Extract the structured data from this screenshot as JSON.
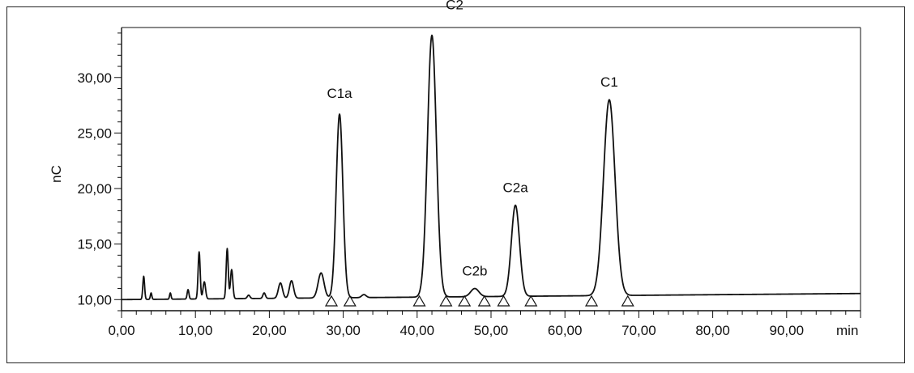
{
  "chart_data": {
    "type": "line",
    "title": "",
    "xlabel": "min",
    "ylabel": "nC",
    "xlim": [
      0,
      100
    ],
    "ylim": [
      9,
      34.5
    ],
    "grid": false,
    "legend": "none",
    "x_ticks": [
      {
        "value": 0,
        "label": "0,00"
      },
      {
        "value": 10,
        "label": "10,00"
      },
      {
        "value": 20,
        "label": "20,00"
      },
      {
        "value": 30,
        "label": "30,00"
      },
      {
        "value": 40,
        "label": "40,00"
      },
      {
        "value": 50,
        "label": "50,00"
      },
      {
        "value": 60,
        "label": "60,00"
      },
      {
        "value": 70,
        "label": "70,00"
      },
      {
        "value": 80,
        "label": "80,00"
      },
      {
        "value": 90,
        "label": "90,00"
      }
    ],
    "y_ticks": [
      {
        "value": 10,
        "label": "10,00"
      },
      {
        "value": 15,
        "label": "15,00"
      },
      {
        "value": 20,
        "label": "20,00"
      },
      {
        "value": 25,
        "label": "25,00"
      },
      {
        "value": 30,
        "label": "30,00"
      }
    ],
    "baseline": {
      "start": 10.0,
      "end": 10.55
    },
    "peaks": [
      {
        "x": 3.0,
        "y": 12.1
      },
      {
        "x": 4.0,
        "y": 10.6
      },
      {
        "x": 6.6,
        "y": 10.6
      },
      {
        "x": 9.0,
        "y": 10.9
      },
      {
        "x": 10.5,
        "y": 14.3
      },
      {
        "x": 11.2,
        "y": 11.6
      },
      {
        "x": 14.3,
        "y": 14.6
      },
      {
        "x": 14.9,
        "y": 12.7
      },
      {
        "x": 17.2,
        "y": 10.4
      },
      {
        "x": 19.3,
        "y": 10.6
      },
      {
        "x": 21.5,
        "y": 11.5
      },
      {
        "x": 23.0,
        "y": 11.7
      },
      {
        "x": 27.0,
        "y": 12.4
      },
      {
        "x": 29.5,
        "y": 26.7,
        "label": "C1a"
      },
      {
        "x": 32.8,
        "y": 10.45
      },
      {
        "x": 42.0,
        "y": 33.8,
        "label": "C2"
      },
      {
        "x": 47.8,
        "y": 11.0,
        "label": "C2b"
      },
      {
        "x": 53.3,
        "y": 18.5,
        "label": "C2a"
      },
      {
        "x": 66.0,
        "y": 28.0,
        "label": "C1"
      }
    ],
    "integration_markers_x": [
      28.4,
      30.9,
      40.3,
      43.9,
      46.4,
      49.1,
      51.7,
      55.4,
      63.6,
      68.5
    ]
  }
}
